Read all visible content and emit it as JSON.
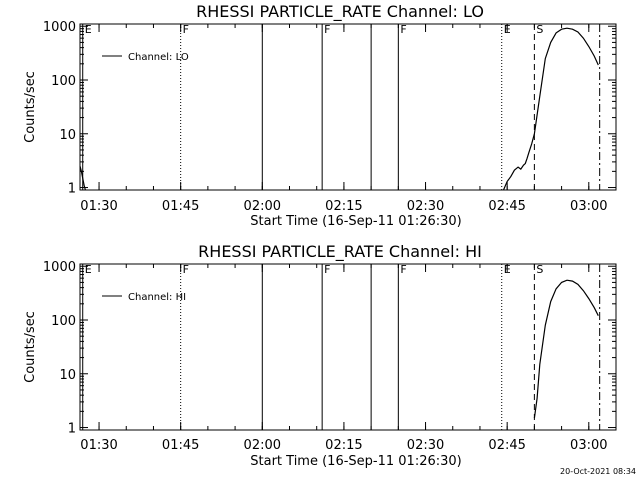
{
  "chart_data": [
    {
      "type": "line",
      "title": "RHESSI PARTICLE_RATE Channel: LO",
      "xlabel": "Start Time (16-Sep-11 01:26:30)",
      "ylabel": "Counts/sec",
      "yscale": "log",
      "ylim": [
        0.9,
        1100
      ],
      "xlim_minutes_after_0126_30": [
        0,
        98.5
      ],
      "x_tick_labels": [
        "01:30",
        "01:45",
        "02:00",
        "02:15",
        "02:30",
        "02:45",
        "03:00"
      ],
      "y_tick_labels": [
        "1",
        "10",
        "100",
        "1000"
      ],
      "legend": {
        "label": "Channel: LO",
        "position": "top-left"
      },
      "flag_markers": [
        {
          "time": "01:27",
          "letter": "E",
          "style": "solid"
        },
        {
          "time": "01:45",
          "letter": "F",
          "style": "dotted"
        },
        {
          "time": "02:00",
          "letter": "",
          "style": "solid"
        },
        {
          "time": "02:11",
          "letter": "F",
          "style": "solid"
        },
        {
          "time": "02:20",
          "letter": "",
          "style": "solid"
        },
        {
          "time": "02:25",
          "letter": "F",
          "style": "solid"
        },
        {
          "time": "02:44",
          "letter": "E",
          "style": "dotted"
        },
        {
          "time": "02:50",
          "letter": "S",
          "style": "dashed"
        },
        {
          "time": "03:02",
          "letter": "",
          "style": "dashdot"
        }
      ],
      "series": [
        {
          "name": "Channel: LO",
          "segments": [
            {
              "x": [
                "01:26:30",
                "01:26:45",
                "01:27:00",
                "01:27:15",
                "01:27:30"
              ],
              "y": [
                2.5,
                2.0,
                1.5,
                1.1,
                0.9
              ]
            },
            {
              "x": [
                "02:44:20",
                "02:45:00",
                "02:45:40",
                "02:46:20",
                "02:47:00",
                "02:47:30",
                "02:48:00",
                "02:48:20",
                "02:48:40",
                "02:49:00",
                "02:49:30",
                "02:50:00",
                "02:51:00",
                "02:52:00",
                "02:53:00",
                "02:54:00",
                "02:55:00",
                "02:56:00",
                "02:57:00",
                "02:58:00",
                "02:59:00",
                "03:00:00",
                "03:01:00",
                "03:01:45"
              ],
              "y": [
                0.9,
                1.3,
                1.6,
                2.1,
                2.4,
                2.2,
                2.6,
                2.8,
                3.5,
                4.5,
                6.5,
                10,
                50,
                250,
                500,
                750,
                880,
                920,
                880,
                780,
                600,
                420,
                280,
                190
              ]
            }
          ]
        }
      ]
    },
    {
      "type": "line",
      "title": "RHESSI PARTICLE_RATE Channel: HI",
      "xlabel": "Start Time (16-Sep-11 01:26:30)",
      "ylabel": "Counts/sec",
      "yscale": "log",
      "ylim": [
        0.9,
        1100
      ],
      "xlim_minutes_after_0126_30": [
        0,
        98.5
      ],
      "x_tick_labels": [
        "01:30",
        "01:45",
        "02:00",
        "02:15",
        "02:30",
        "02:45",
        "03:00"
      ],
      "y_tick_labels": [
        "1",
        "10",
        "100",
        "1000"
      ],
      "legend": {
        "label": "Channel: HI",
        "position": "top-left"
      },
      "flag_markers": [
        {
          "time": "01:27",
          "letter": "E",
          "style": "solid"
        },
        {
          "time": "01:45",
          "letter": "F",
          "style": "dotted"
        },
        {
          "time": "02:00",
          "letter": "",
          "style": "solid"
        },
        {
          "time": "02:11",
          "letter": "F",
          "style": "solid"
        },
        {
          "time": "02:20",
          "letter": "",
          "style": "solid"
        },
        {
          "time": "02:25",
          "letter": "F",
          "style": "solid"
        },
        {
          "time": "02:44",
          "letter": "E",
          "style": "dotted"
        },
        {
          "time": "02:50",
          "letter": "S",
          "style": "dashed"
        },
        {
          "time": "03:02",
          "letter": "",
          "style": "dashdot"
        }
      ],
      "series": [
        {
          "name": "Channel: HI",
          "segments": [
            {
              "x": [
                "02:50:00",
                "02:50:30",
                "02:51:00",
                "02:52:00",
                "02:53:00",
                "02:54:00",
                "02:55:00",
                "02:56:00",
                "02:57:00",
                "02:58:00",
                "02:59:00",
                "03:00:00",
                "03:01:00",
                "03:01:45"
              ],
              "y": [
                1.5,
                3.5,
                15,
                80,
                220,
                380,
                500,
                550,
                530,
                460,
                350,
                250,
                170,
                120
              ]
            }
          ]
        }
      ]
    }
  ],
  "footer": {
    "timestamp": "20-Oct-2021 08:34"
  }
}
